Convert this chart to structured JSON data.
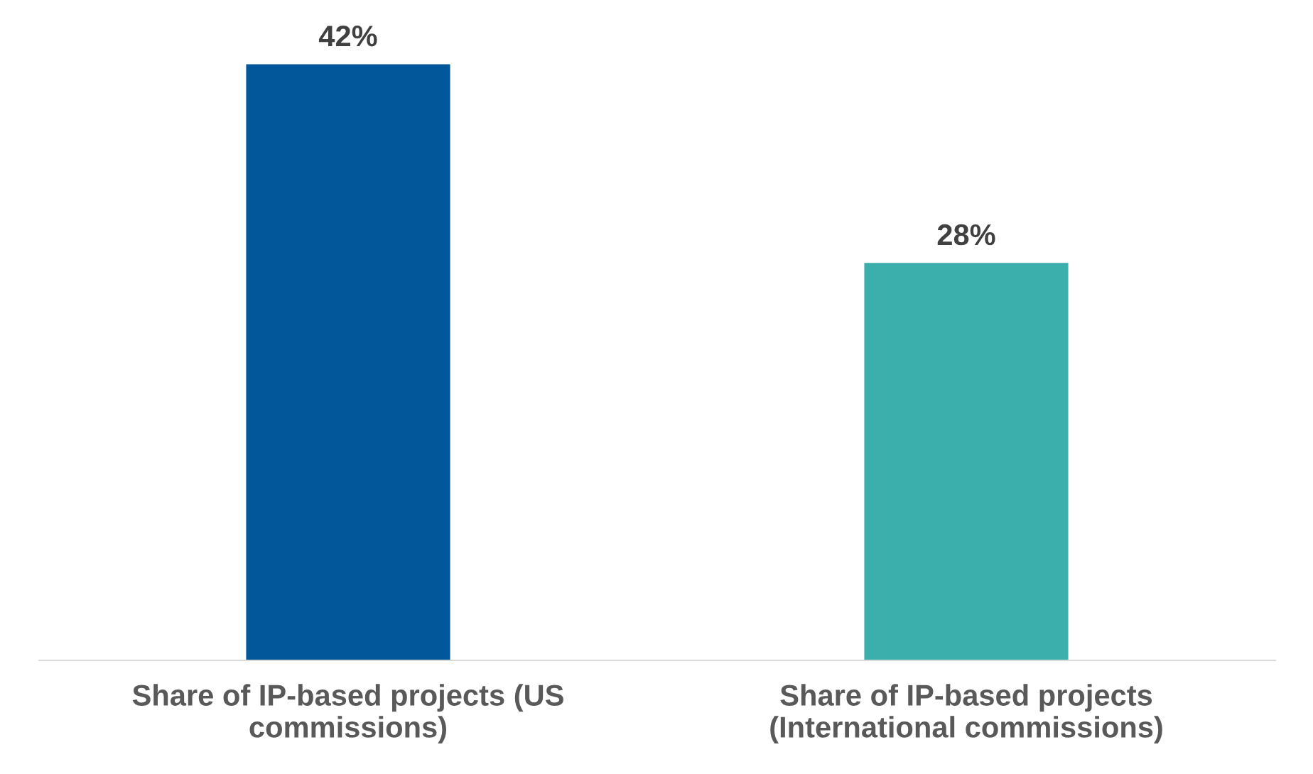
{
  "chart_data": {
    "type": "bar",
    "categories": [
      "Share of IP-based projects (US\ncommissions)",
      "Share of IP-based projects\n(International commissions)"
    ],
    "values": [
      42,
      28
    ],
    "colors": [
      "#02579a",
      "#3aafac"
    ],
    "value_labels": [
      "42%",
      "28%"
    ],
    "grid": false,
    "legend": false
  }
}
